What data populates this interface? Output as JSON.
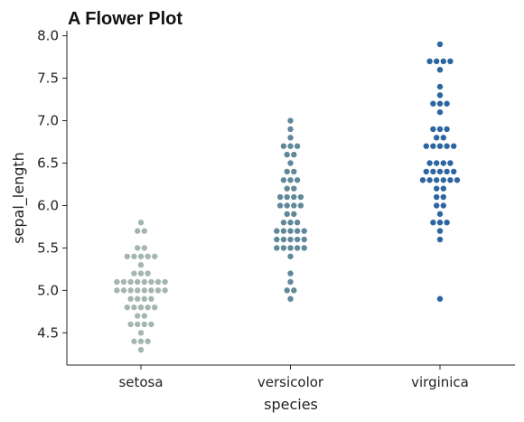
{
  "chart_data": {
    "type": "scatter",
    "subtype": "swarm",
    "title": "A Flower Plot",
    "xlabel": "species",
    "ylabel": "sepal_length",
    "ylim": [
      4.12,
      8.06
    ],
    "yticks": [
      "4.5",
      "5.0",
      "5.5",
      "6.0",
      "6.5",
      "7.0",
      "7.5",
      "8.0"
    ],
    "grid": false,
    "categories": [
      "setosa",
      "versicolor",
      "virginica"
    ],
    "colors": [
      "#a4b6b0",
      "#5f8898",
      "#2c65a0"
    ],
    "series": [
      {
        "values": [
          5.1,
          4.9,
          4.7,
          4.6,
          5.0,
          5.4,
          4.6,
          5.0,
          4.4,
          4.9,
          5.4,
          4.8,
          4.8,
          4.3,
          5.8,
          5.7,
          5.4,
          5.1,
          5.7,
          5.1,
          5.4,
          5.1,
          4.6,
          5.1,
          4.8,
          5.0,
          5.0,
          5.2,
          5.2,
          4.7,
          4.8,
          5.4,
          5.2,
          5.5,
          4.9,
          5.0,
          5.5,
          4.9,
          4.4,
          5.1,
          5.0,
          4.5,
          4.4,
          5.0,
          5.1,
          4.8,
          5.1,
          4.6,
          5.3,
          5.0
        ]
      },
      {
        "values": [
          7.0,
          6.4,
          6.9,
          5.5,
          6.5,
          5.7,
          6.3,
          4.9,
          6.6,
          5.2,
          5.0,
          5.9,
          6.0,
          6.1,
          5.6,
          6.7,
          5.6,
          5.8,
          6.2,
          5.6,
          5.9,
          6.1,
          6.3,
          6.1,
          6.4,
          6.6,
          6.8,
          6.7,
          6.0,
          5.7,
          5.5,
          5.5,
          5.8,
          6.0,
          5.4,
          6.0,
          6.7,
          6.3,
          5.6,
          5.5,
          5.5,
          6.1,
          5.8,
          5.0,
          5.6,
          5.7,
          5.7,
          6.2,
          5.1,
          5.7
        ]
      },
      {
        "values": [
          6.3,
          5.8,
          7.1,
          6.3,
          6.5,
          7.6,
          4.9,
          7.3,
          6.7,
          7.2,
          6.5,
          6.4,
          6.8,
          5.7,
          5.8,
          6.4,
          6.5,
          7.7,
          7.7,
          6.0,
          6.9,
          5.6,
          7.7,
          6.3,
          6.7,
          7.2,
          6.2,
          6.1,
          6.4,
          7.2,
          7.4,
          7.9,
          6.4,
          6.3,
          6.1,
          7.7,
          6.3,
          6.4,
          6.0,
          6.9,
          6.7,
          6.9,
          5.8,
          6.8,
          6.7,
          6.7,
          6.3,
          6.5,
          6.2,
          5.9
        ]
      }
    ]
  }
}
